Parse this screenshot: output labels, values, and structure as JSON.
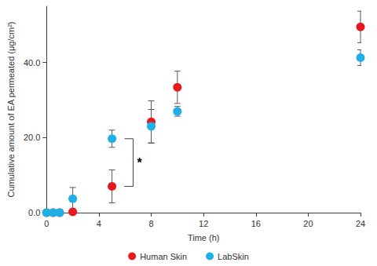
{
  "chart_data": {
    "type": "scatter",
    "x_label": "Time (h)",
    "y_label": "Cumulative amount of EA permeated (μg/cm²)",
    "xlim": [
      0,
      24
    ],
    "xticks": [
      0,
      4,
      8,
      12,
      16,
      20,
      24
    ],
    "ylim": [
      0,
      55
    ],
    "yticks": [
      {
        "value": 0,
        "label": "0.0"
      },
      {
        "value": 20,
        "label": "20.0"
      },
      {
        "value": 40,
        "label": "40.0"
      }
    ],
    "grid": false,
    "legend": "bottom",
    "marker": "circle",
    "series": [
      {
        "name": "Human Skin",
        "color": "#e8191c",
        "x": [
          0,
          0.5,
          1,
          2,
          5,
          8,
          10,
          24
        ],
        "values": [
          0,
          0,
          0,
          0.2,
          7.0,
          24.2,
          33.4,
          49.5
        ],
        "errors": [
          0,
          0,
          0,
          0,
          4.4,
          5.6,
          4.3,
          4.2
        ]
      },
      {
        "name": "LabSkin",
        "color": "#1fb0e6",
        "x": [
          0,
          0.5,
          1,
          2,
          5,
          8,
          10,
          24
        ],
        "values": [
          0,
          0,
          0,
          3.7,
          19.7,
          23.0,
          27.0,
          41.3
        ],
        "errors": [
          0,
          0,
          0,
          3.0,
          2.3,
          4.5,
          1.3,
          2.1
        ]
      }
    ],
    "annotations": [
      {
        "text": "*",
        "x": 5
      }
    ]
  }
}
